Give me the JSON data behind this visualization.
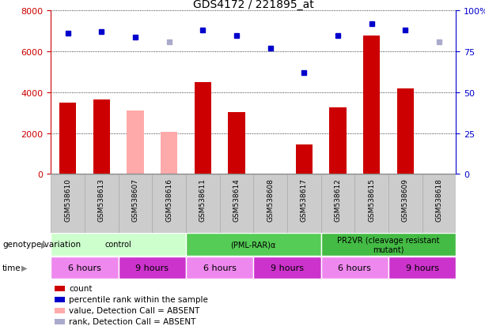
{
  "title": "GDS4172 / 221895_at",
  "samples": [
    "GSM538610",
    "GSM538613",
    "GSM538607",
    "GSM538616",
    "GSM538611",
    "GSM538614",
    "GSM538608",
    "GSM538617",
    "GSM538612",
    "GSM538615",
    "GSM538609",
    "GSM538618"
  ],
  "count_values": [
    3500,
    3650,
    3100,
    2050,
    4500,
    3050,
    null,
    1450,
    3250,
    6800,
    4200,
    null
  ],
  "count_absent": [
    false,
    false,
    true,
    true,
    false,
    false,
    false,
    false,
    false,
    false,
    false,
    true
  ],
  "rank_values": [
    86,
    87,
    84,
    81,
    88,
    85,
    77,
    62,
    85,
    92,
    88,
    81
  ],
  "rank_absent": [
    false,
    false,
    false,
    true,
    false,
    false,
    false,
    false,
    false,
    false,
    false,
    true
  ],
  "ylim_left": [
    0,
    8000
  ],
  "ylim_right": [
    0,
    100
  ],
  "yticks_left": [
    0,
    2000,
    4000,
    6000,
    8000
  ],
  "yticks_right": [
    0,
    25,
    50,
    75,
    100
  ],
  "ytick_labels_right": [
    "0",
    "25",
    "50",
    "75",
    "100%"
  ],
  "color_bar_present": "#cc0000",
  "color_bar_absent": "#ffaaaa",
  "color_dot_present": "#0000cc",
  "color_dot_absent": "#aaaacc",
  "groups": [
    {
      "label": "control",
      "start": 0,
      "end": 3,
      "color": "#ccffcc"
    },
    {
      "label": "(PML-RAR)α",
      "start": 4,
      "end": 7,
      "color": "#55cc55"
    },
    {
      "label": "PR2VR (cleavage resistant\nmutant)",
      "start": 8,
      "end": 11,
      "color": "#44bb44"
    }
  ],
  "time_colors": [
    "#ee88ee",
    "#cc33cc"
  ],
  "time_groups": [
    {
      "label": "6 hours",
      "start": 0,
      "end": 1
    },
    {
      "label": "9 hours",
      "start": 2,
      "end": 3
    },
    {
      "label": "6 hours",
      "start": 4,
      "end": 5
    },
    {
      "label": "9 hours",
      "start": 6,
      "end": 7
    },
    {
      "label": "6 hours",
      "start": 8,
      "end": 9
    },
    {
      "label": "9 hours",
      "start": 10,
      "end": 11
    }
  ],
  "legend_items": [
    {
      "label": "count",
      "color": "#cc0000"
    },
    {
      "label": "percentile rank within the sample",
      "color": "#0000cc"
    },
    {
      "label": "value, Detection Call = ABSENT",
      "color": "#ffaaaa"
    },
    {
      "label": "rank, Detection Call = ABSENT",
      "color": "#aaaacc"
    }
  ],
  "genotype_label": "genotype/variation",
  "time_label": "time",
  "tick_bg_color": "#cccccc",
  "tick_border_color": "#aaaaaa"
}
